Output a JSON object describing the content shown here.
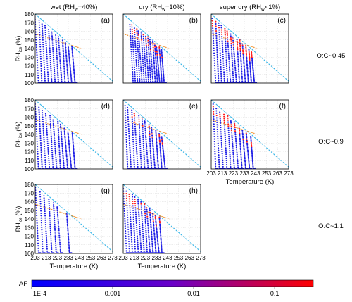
{
  "chart_data": {
    "type": "scatter",
    "columns": [
      {
        "label": "wet (RH",
        "sub": "w",
        "rest": "=40%)"
      },
      {
        "label": "dry (RH",
        "sub": "w",
        "rest": "=10%)"
      },
      {
        "label": "super dry (RH",
        "sub": "w",
        "rest": "<1%)"
      }
    ],
    "rows": [
      {
        "label": "O:C~0.45"
      },
      {
        "label": "O:C~0.9"
      },
      {
        "label": "O:C~1.1"
      }
    ],
    "xlabel": "Temperature (K)",
    "ylabel_main": "RH",
    "ylabel_sub": "ice",
    "ylabel_unit": "(%)",
    "xlim": [
      203,
      273
    ],
    "ylim": [
      100,
      180
    ],
    "xticks": [
      203,
      213,
      223,
      233,
      243,
      253,
      263,
      273
    ],
    "yticks": [
      100,
      110,
      120,
      130,
      140,
      150,
      160,
      170,
      180
    ],
    "grid": true,
    "reference_lines": {
      "water_saturation": {
        "color": "#38b6e8",
        "points": [
          [
            203,
            180
          ],
          [
            275,
            100
          ]
        ]
      },
      "homogeneous_freezing": {
        "color": "#f08a1e",
        "points": [
          [
            203,
            157
          ],
          [
            245,
            140
          ]
        ]
      }
    },
    "panels": [
      {
        "label": "(a)",
        "row": 0,
        "col": 0,
        "tmin": 206,
        "tmax": 239,
        "n": 12,
        "hi": 0.0
      },
      {
        "label": "(b)",
        "row": 0,
        "col": 1,
        "tmin": 212,
        "tmax": 240,
        "n": 15,
        "hi": 0.35
      },
      {
        "label": "(c)",
        "row": 0,
        "col": 2,
        "tmin": 207,
        "tmax": 242,
        "n": 14,
        "hi": 0.7
      },
      {
        "label": "(d)",
        "row": 1,
        "col": 0,
        "tmin": 206,
        "tmax": 239,
        "n": 11,
        "hi": 0.0
      },
      {
        "label": "(e)",
        "row": 1,
        "col": 1,
        "tmin": 207,
        "tmax": 241,
        "n": 12,
        "hi": 0.25
      },
      {
        "label": "(f)",
        "row": 1,
        "col": 2,
        "tmin": 207,
        "tmax": 241,
        "n": 11,
        "hi": 0.6
      },
      {
        "label": "(g)",
        "row": 2,
        "col": 0,
        "tmin": 206,
        "tmax": 226,
        "n": 6,
        "hi": 0.0,
        "extra": 234
      },
      {
        "label": "(h)",
        "row": 2,
        "col": 1,
        "tmin": 206,
        "tmax": 238,
        "n": 13,
        "hi": 0.4
      }
    ],
    "colorbar": {
      "label": "AF",
      "scale": "log",
      "range": [
        0.0001,
        0.3
      ],
      "colors": [
        "#0000ff",
        "#6a00c8",
        "#ff0000"
      ],
      "tick_labels": [
        "1E-4",
        "0.001",
        "0.01",
        "0.1"
      ],
      "tick_values": [
        0.0001,
        0.001,
        0.01,
        0.1
      ]
    },
    "colors": {
      "low": "#1d1de6",
      "high": "#ff1a1a"
    }
  }
}
